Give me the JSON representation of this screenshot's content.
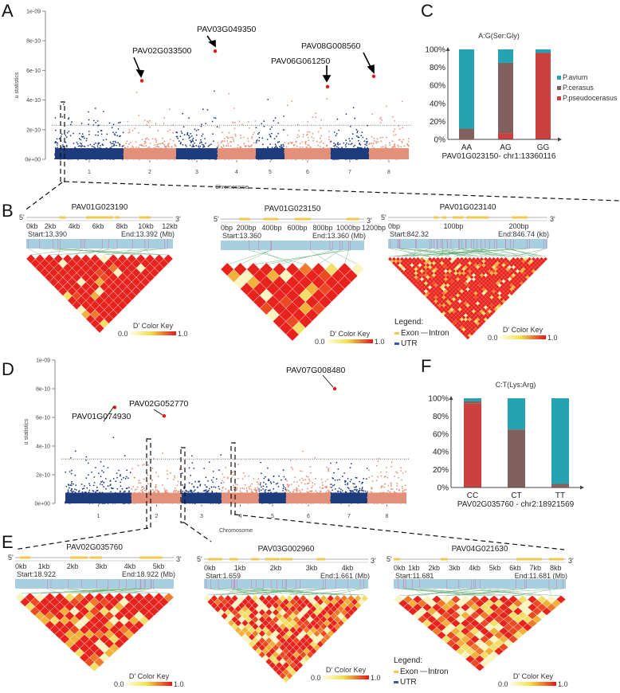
{
  "panels": {
    "A": "A",
    "B": "B",
    "C": "C",
    "D": "D",
    "E": "E",
    "F": "F"
  },
  "colors": {
    "blue": "#1e3c7c",
    "salmon": "#e3907a",
    "highlight": "#e8141c",
    "avium": "#26a3b2",
    "cerasus": "#82605e",
    "pseudocerasus": "#cc4040",
    "exon": "#f1c94e",
    "utr": "#3a56b4",
    "ld_track": "#a8cfe0"
  },
  "chart_data": [
    {
      "id": "A",
      "type": "scatter",
      "title": "",
      "xlabel": "Chromosome",
      "ylabel": "u statistics",
      "yticks": [
        "0e+00",
        "2e-10",
        "4e-10",
        "6e-10",
        "8e-10",
        "1e-09"
      ],
      "ylim": [
        0,
        1e-09
      ],
      "categories": [
        "1",
        "2",
        "3",
        "4",
        "5",
        "6",
        "7",
        "8"
      ],
      "threshold": 2.3e-10,
      "highlights": [
        {
          "gene": "PAV02G033500",
          "chr": "2",
          "u": 5.3e-10
        },
        {
          "gene": "PAV03G049350",
          "chr": "3",
          "u": 7.3e-10
        },
        {
          "gene": "PAV06G061250",
          "chr": "6",
          "u": 4.9e-10
        },
        {
          "gene": "PAV08G008560",
          "chr": "8",
          "u": 5.6e-10
        }
      ]
    },
    {
      "id": "D",
      "type": "scatter",
      "title": "",
      "xlabel": "Chromosome",
      "ylabel": "u statistics",
      "yticks": [
        "0e+00",
        "2e-10",
        "4e-10",
        "6e-10",
        "8e-10",
        "1e-09"
      ],
      "ylim": [
        0,
        1e-09
      ],
      "categories": [
        "1",
        "2",
        "3",
        "4",
        "5",
        "6",
        "7",
        "8"
      ],
      "threshold": 3.1e-10,
      "highlights": [
        {
          "gene": "PAV01G074930",
          "chr": "1",
          "u": 6.7e-10
        },
        {
          "gene": "PAV02G052770",
          "chr": "2",
          "u": 6.1e-10
        },
        {
          "gene": "PAV07G008480",
          "chr": "7",
          "u": 8e-10
        }
      ]
    },
    {
      "id": "C",
      "type": "bar",
      "stacked": true,
      "title": "A:G(Ser:Gly)",
      "xlabel": "PAV01G023150- chr1:13360116",
      "yticks": [
        "0%",
        "20%",
        "40%",
        "60%",
        "80%",
        "100%"
      ],
      "ylim": [
        0,
        100
      ],
      "categories": [
        "AA",
        "AG",
        "GG"
      ],
      "series": [
        {
          "name": "P.pseudocerasus",
          "values": [
            1,
            7,
            96
          ]
        },
        {
          "name": "P.cerasus",
          "values": [
            11,
            78,
            0
          ]
        },
        {
          "name": "P.avium",
          "values": [
            88,
            15,
            4
          ]
        }
      ],
      "legend": [
        "P.avium",
        "P.cerasus",
        "P.pseudocerasus"
      ],
      "legend_position": "right"
    },
    {
      "id": "F",
      "type": "bar",
      "stacked": true,
      "title": "C:T(Lys:Arg)",
      "xlabel": "PAV02G035760 - chr2:18921569",
      "yticks": [
        "0%",
        "20%",
        "40%",
        "60%",
        "80%",
        "100%"
      ],
      "ylim": [
        0,
        100
      ],
      "categories": [
        "CC",
        "CT",
        "TT"
      ],
      "series": [
        {
          "name": "P.pseudocerasus",
          "values": [
            94,
            0,
            1
          ]
        },
        {
          "name": "P.cerasus",
          "values": [
            3,
            65,
            3
          ]
        },
        {
          "name": "P.avium",
          "values": [
            3,
            35,
            96
          ]
        }
      ]
    }
  ],
  "genes": {
    "B1": {
      "name": "PAV01G023190",
      "ticks": [
        "0kb",
        "2kb",
        "4kb",
        "6kb",
        "8kb",
        "10kb",
        "12kb"
      ],
      "start": "Start:13.390",
      "end": "End:13.392 (Mb)",
      "snps": 16
    },
    "B2": {
      "name": "PAV01G023150",
      "ticks": [
        "0bp",
        "200bp",
        "400bp",
        "600bp",
        "800bp",
        "1000bp",
        "1200bp"
      ],
      "start": "Start:13.360",
      "end": "End:13.360 (Mb)",
      "snps": 11
    },
    "B3": {
      "name": "PAV01G023140",
      "ticks": [
        "0bp",
        "100bp",
        "200bp"
      ],
      "start": "Start:842.32",
      "end": "End:846.74 (kb)",
      "snps": 40
    },
    "E1": {
      "name": "PAV02G035760",
      "ticks": [
        "0kb",
        "1kb",
        "2kb",
        "3kb",
        "4kb",
        "5kb"
      ],
      "start": "Start:18.922",
      "end": "End:18.922 (Mb)",
      "snps": 16
    },
    "E2": {
      "name": "PAV03G002960",
      "ticks": [
        "0kb",
        "1kb",
        "2kb",
        "3kb",
        "4kb"
      ],
      "start": "Start:1.659",
      "end": "End:1.661 (Mb)",
      "snps": 24
    },
    "E3": {
      "name": "PAV04G021630",
      "ticks": [
        "0kb",
        "1kb",
        "2kb",
        "3kb",
        "4kb",
        "5kb",
        "6kb",
        "7kb",
        "8kb"
      ],
      "start": "Start:11.681",
      "end": "End:11.681 (Mb)",
      "snps": 18
    }
  },
  "strand": {
    "five": "5'",
    "three": "3'"
  },
  "color_key": {
    "title": "D' Color Key",
    "min": "0.0",
    "max": "1.0"
  },
  "legend": {
    "title": "Legend:",
    "exon": "Exon",
    "intron": "Intron",
    "utr": "UTR"
  }
}
